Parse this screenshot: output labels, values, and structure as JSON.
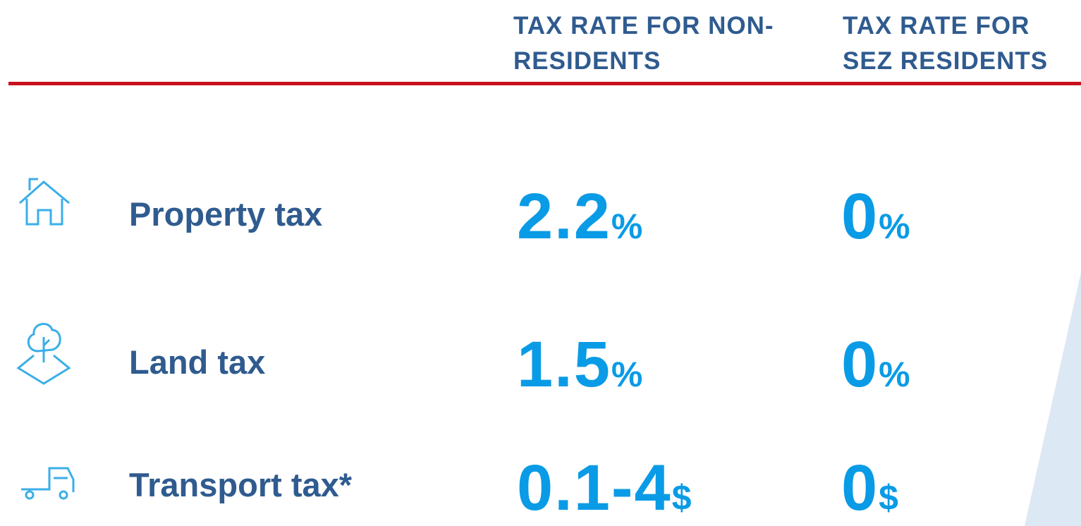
{
  "header": {
    "columns": [
      "TAX RATE FOR NON-RESIDENTS",
      "TAX RATE FOR SEZ RESIDENTS"
    ]
  },
  "rows": [
    {
      "label": "Property tax",
      "non_residents": {
        "value": "2.2",
        "unit": "%"
      },
      "sez_residents": {
        "value": "0",
        "unit": "%"
      }
    },
    {
      "label": "Land tax",
      "non_residents": {
        "value": "1.5",
        "unit": "%"
      },
      "sez_residents": {
        "value": "0",
        "unit": "%"
      }
    },
    {
      "label": "Transport tax*",
      "non_residents": {
        "value": "0.1-4",
        "unit": "$"
      },
      "sez_residents": {
        "value": "0",
        "unit": "$"
      }
    }
  ]
}
